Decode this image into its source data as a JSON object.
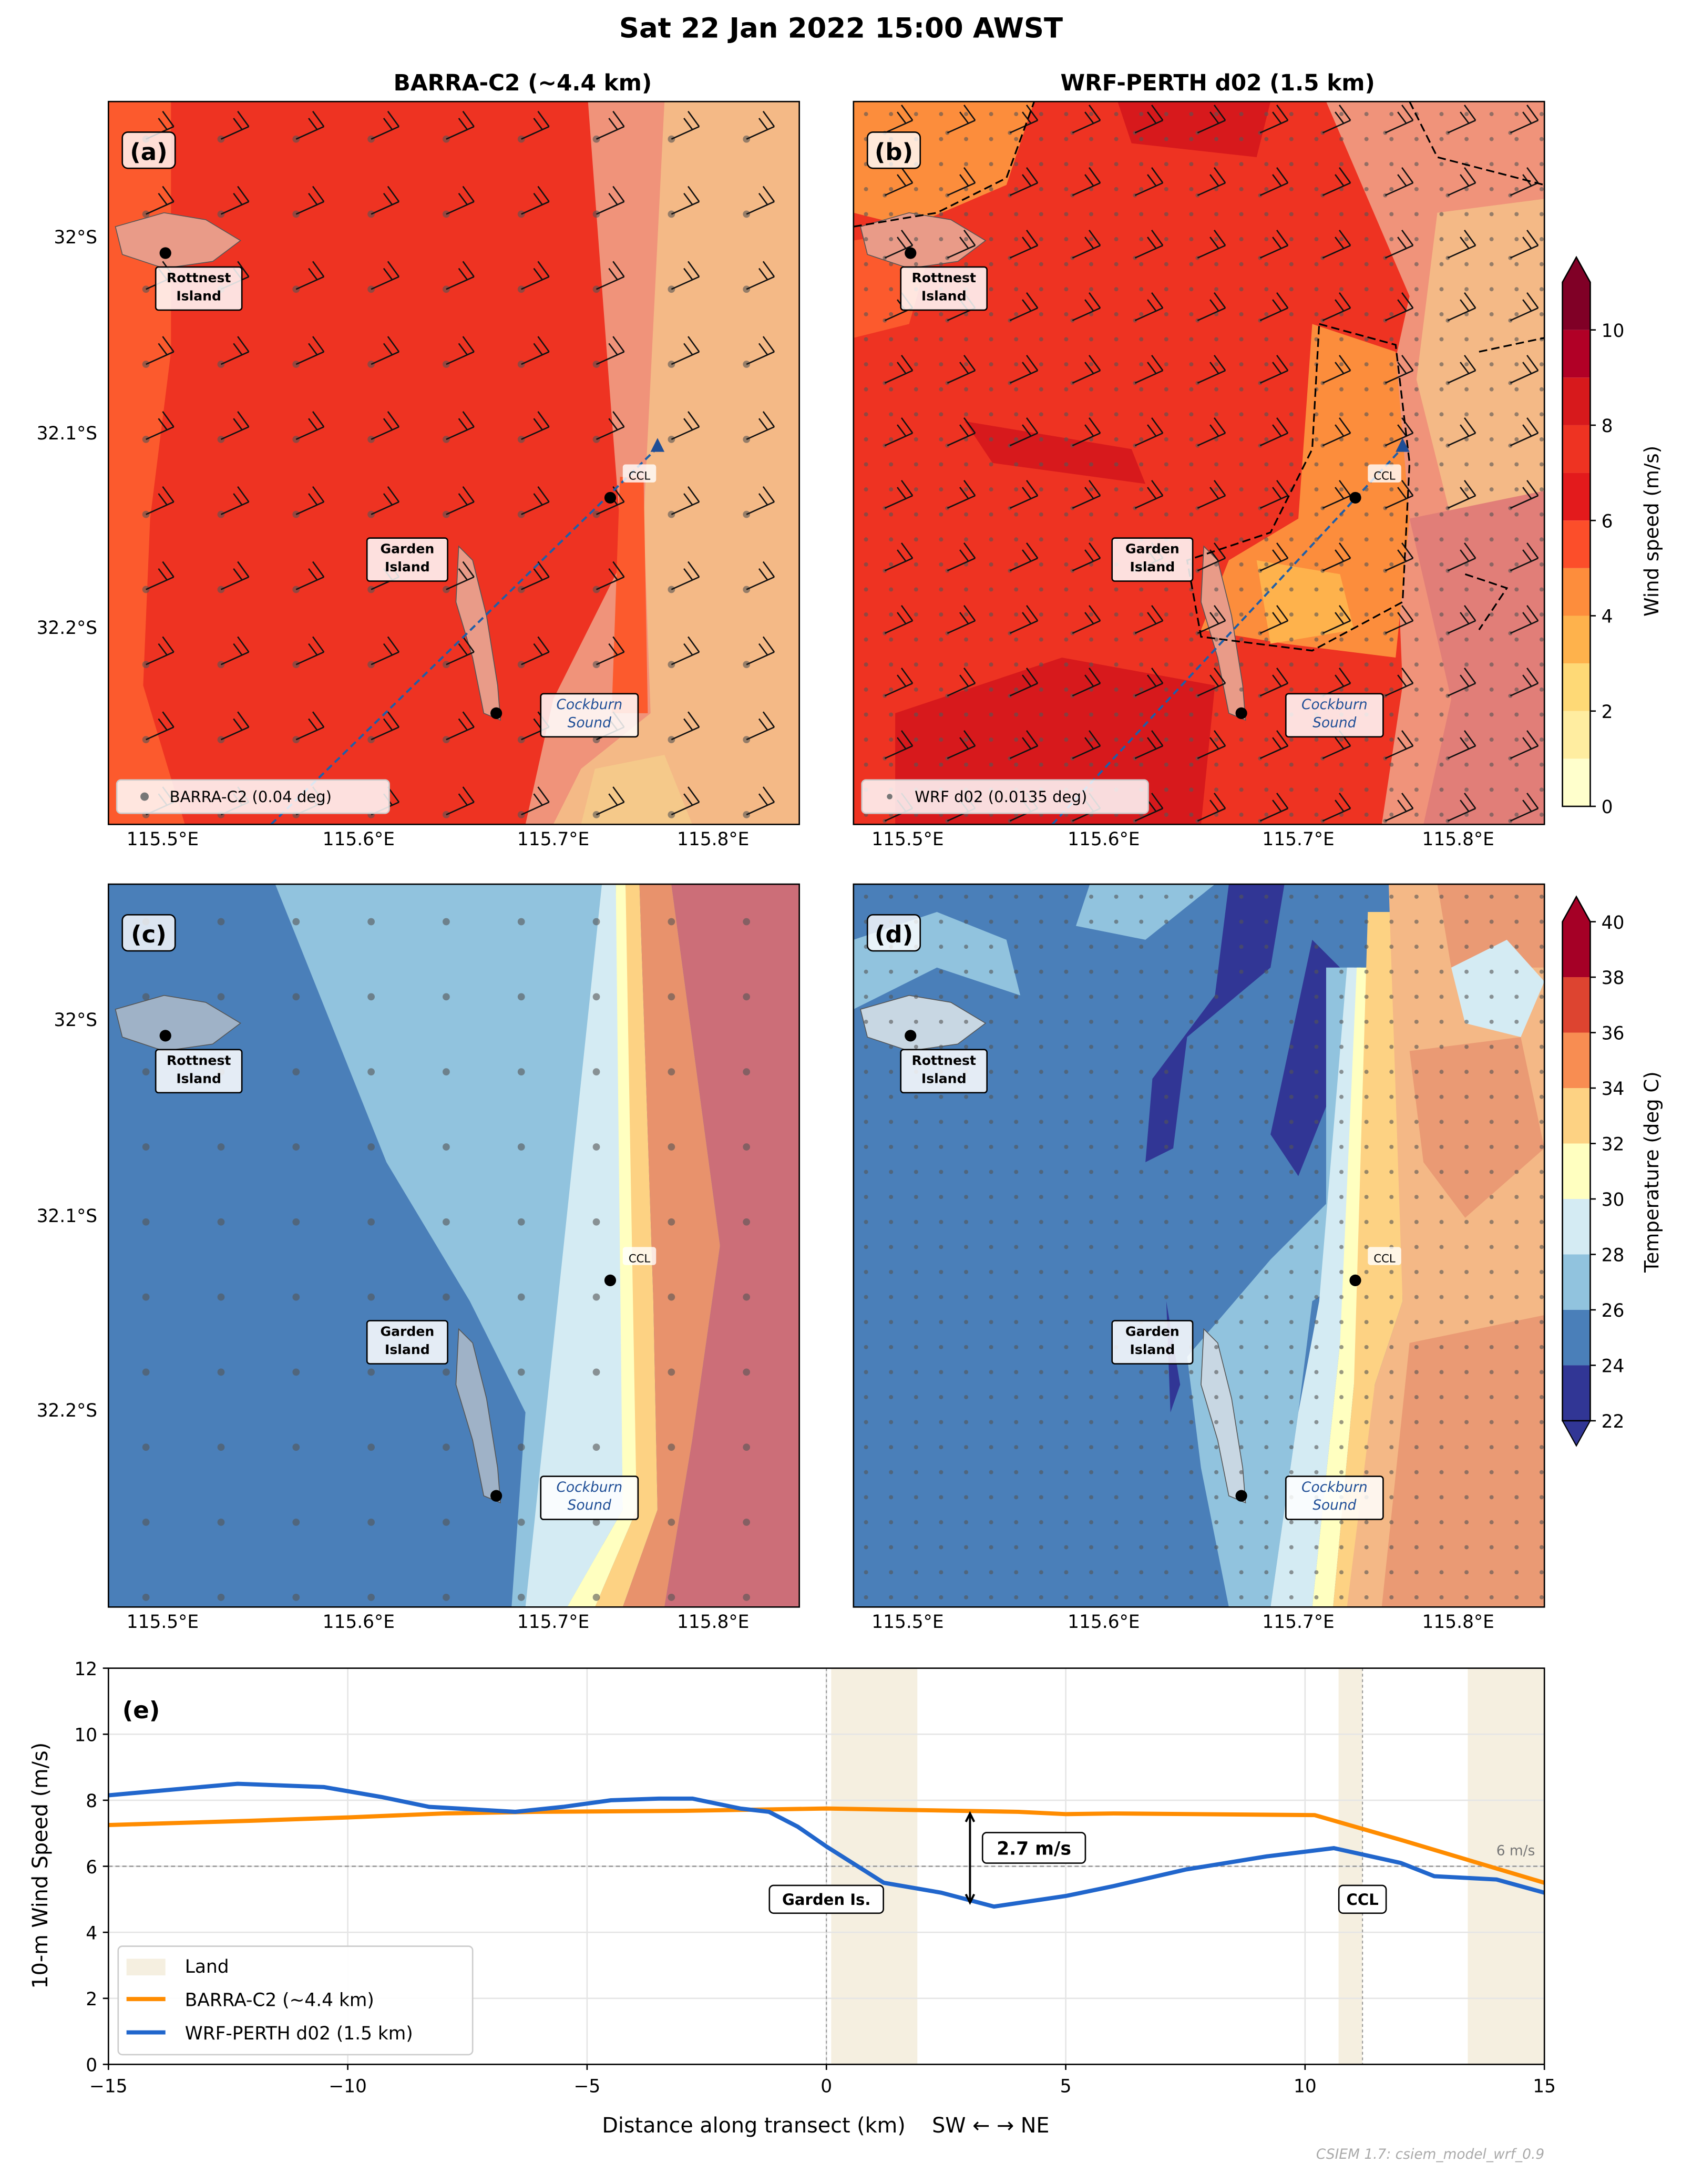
{
  "figure": {
    "title": "Sat 22 Jan 2022  15:00 AWST",
    "footer": "CSIEM 1.7: csiem_model_wrf_0.9"
  },
  "columns": {
    "left": "BARRA-C2  (~4.4 km)",
    "right": "WRF-PERTH d02  (1.5 km)"
  },
  "panels": {
    "a": {
      "letter": "(a)",
      "legend": "BARRA-C2 (0.04 deg)"
    },
    "b": {
      "letter": "(b)",
      "legend": "WRF d02 (0.0135 deg)"
    },
    "c": {
      "letter": "(c)"
    },
    "d": {
      "letter": "(d)"
    },
    "e": {
      "letter": "(e)"
    }
  },
  "map_labels": {
    "rottnest_1": "Rottnest",
    "rottnest_2": "Island",
    "garden_1": "Garden",
    "garden_2": "Island",
    "cockburn_1": "Cockburn",
    "cockburn_2": "Sound",
    "ccl": "CCL"
  },
  "map_axes": {
    "lat_ticks": [
      "32°S",
      "32.1°S",
      "32.2°S"
    ],
    "lon_ticks": [
      "115.5°E",
      "115.6°E",
      "115.7°E",
      "115.8°E"
    ]
  },
  "colorbars": {
    "wind": {
      "label": "Wind speed (m/s)",
      "ticks": [
        "0",
        "2",
        "4",
        "6",
        "8",
        "10"
      ],
      "range": [
        0,
        11
      ],
      "colors": [
        "#ffffcc",
        "#ffeda0",
        "#fed976",
        "#feb24c",
        "#fd8d3c",
        "#fc4e2a",
        "#e31a1c",
        "#ee3322",
        "#d7191c",
        "#b10026",
        "#800026"
      ]
    },
    "temp": {
      "label": "Temperature (deg C)",
      "ticks": [
        "22",
        "24",
        "26",
        "28",
        "30",
        "32",
        "34",
        "36",
        "38",
        "40"
      ],
      "range": [
        22,
        40
      ],
      "colors": [
        "#313695",
        "#4a7fb9",
        "#91c3de",
        "#d4ebf3",
        "#ffffc0",
        "#fdd283",
        "#f88d52",
        "#dd4430",
        "#a50026"
      ]
    }
  },
  "chart_data": {
    "type": "line",
    "title": "",
    "xlabel": "Distance along transect (km)    SW ← → NE",
    "ylabel": "10-m Wind Speed (m/s)",
    "xlim": [
      -15,
      15
    ],
    "ylim": [
      0,
      12
    ],
    "x_ticks": [
      "−15",
      "−10",
      "−5",
      "0",
      "5",
      "10",
      "15"
    ],
    "y_ticks": [
      "0",
      "2",
      "4",
      "6",
      "8",
      "10",
      "12"
    ],
    "grid": true,
    "legend_position": "bottom-left",
    "legend": [
      "Land",
      "BARRA-C2 (~4.4 km)",
      "WRF-PERTH d02 (1.5 km)"
    ],
    "land_spans": [
      [
        0.1,
        1.9
      ],
      [
        10.7,
        11.2
      ],
      [
        13.4,
        15
      ]
    ],
    "reference_line": {
      "y": 6,
      "label": "6 m/s"
    },
    "markers": [
      {
        "x": 0,
        "label": "Garden Is."
      },
      {
        "x": 11.2,
        "label": "CCL"
      }
    ],
    "annotation": {
      "x": 3,
      "y_from": 4.9,
      "y_to": 7.6,
      "label": "2.7 m/s"
    },
    "series": [
      {
        "name": "BARRA-C2 (~4.4 km)",
        "color": "#ff8c00",
        "x": [
          -15,
          -12,
          -10,
          -8,
          -6,
          -3,
          0,
          2,
          4,
          5,
          6,
          10.2,
          12,
          15
        ],
        "y": [
          7.25,
          7.38,
          7.48,
          7.6,
          7.65,
          7.68,
          7.75,
          7.7,
          7.65,
          7.58,
          7.6,
          7.55,
          6.8,
          5.5
        ]
      },
      {
        "name": "WRF-PERTH d02 (1.5 km)",
        "color": "#2166cc",
        "x": [
          -15,
          -12.3,
          -10.5,
          -9.3,
          -8.3,
          -6.5,
          -5.5,
          -4.5,
          -3.5,
          -2.8,
          -2.3,
          -1.8,
          -1.2,
          -0.6,
          0,
          1.2,
          2.4,
          3.5,
          5,
          6,
          7.5,
          9.2,
          10.6,
          12,
          12.7,
          14,
          15
        ],
        "y": [
          8.15,
          8.5,
          8.4,
          8.1,
          7.8,
          7.65,
          7.8,
          8.0,
          8.05,
          8.05,
          7.9,
          7.75,
          7.65,
          7.2,
          6.6,
          5.5,
          5.2,
          4.78,
          5.1,
          5.4,
          5.9,
          6.3,
          6.55,
          6.1,
          5.7,
          5.6,
          5.2
        ]
      }
    ]
  }
}
